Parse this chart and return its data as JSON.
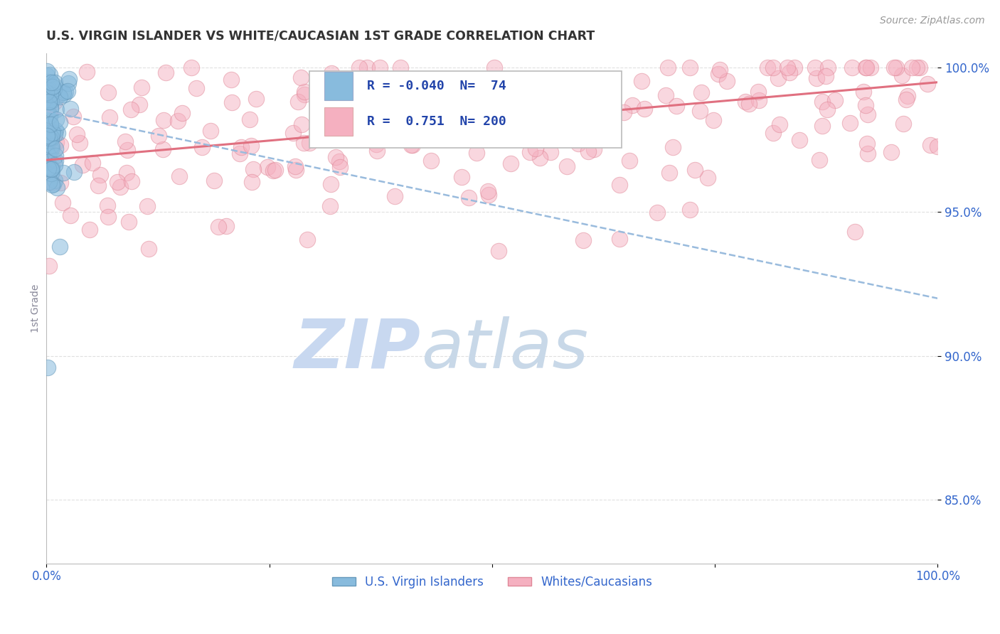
{
  "title": "U.S. VIRGIN ISLANDER VS WHITE/CAUCASIAN 1ST GRADE CORRELATION CHART",
  "source_text": "Source: ZipAtlas.com",
  "ylabel": "1st Grade",
  "xlim": [
    0.0,
    1.0
  ],
  "ylim": [
    0.828,
    1.005
  ],
  "ytick_positions": [
    0.85,
    0.9,
    0.95,
    1.0
  ],
  "ytick_labels": [
    "85.0%",
    "90.0%",
    "95.0%",
    "100.0%"
  ],
  "xtick_positions": [
    0.0,
    0.25,
    0.5,
    0.75,
    1.0
  ],
  "xtick_labels": [
    "0.0%",
    "",
    "",
    "",
    "100.0%"
  ],
  "legend_entries": [
    {
      "color": "#aac4e8",
      "R": "-0.040",
      "N": " 74"
    },
    {
      "color": "#f4a8b8",
      "R": "  0.751",
      "N": "200"
    }
  ],
  "blue_N": 74,
  "blue_line_x": [
    0.0,
    1.0
  ],
  "blue_line_y": [
    0.985,
    0.92
  ],
  "pink_N": 200,
  "pink_line_x": [
    0.0,
    1.0
  ],
  "pink_line_y": [
    0.968,
    0.995
  ],
  "dot_color_blue": "#88bbdd",
  "dot_color_pink": "#f5b0c0",
  "dot_edge_blue": "#6699bb",
  "dot_edge_pink": "#e08898",
  "trend_color_blue": "#99bbdd",
  "trend_color_pink": "#e07080",
  "bg_color": "#ffffff",
  "grid_color": "#cccccc",
  "title_color": "#333333",
  "tick_label_color": "#3366cc",
  "watermark_zip_color": "#c8d8f0",
  "watermark_atlas_color": "#c8d8e8",
  "legend_text_color": "#2244aa"
}
